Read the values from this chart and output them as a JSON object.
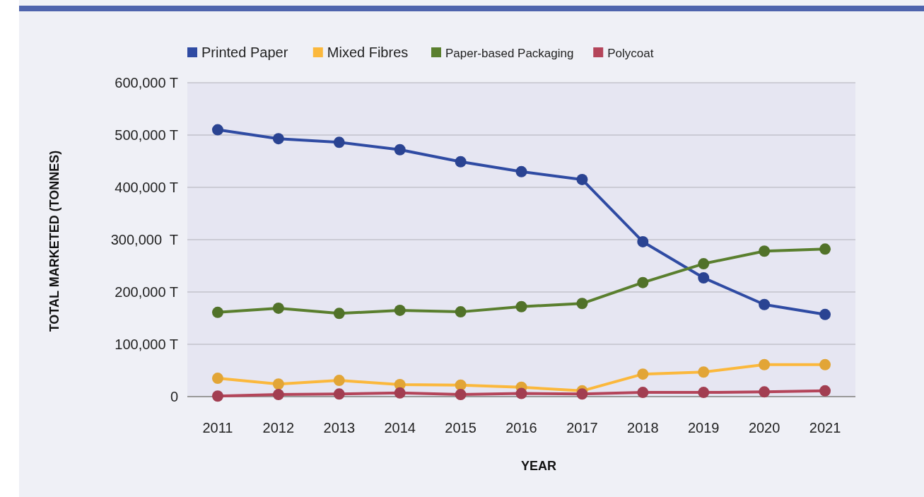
{
  "chart_data": {
    "type": "line",
    "xlabel": "YEAR",
    "ylabel": "TOTAL MARKETED (TONNES)",
    "categories": [
      "2011",
      "2012",
      "2013",
      "2014",
      "2015",
      "2016",
      "2017",
      "2018",
      "2019",
      "2020",
      "2021"
    ],
    "series": [
      {
        "name": "Printed Paper",
        "color": "#2f4ba3",
        "values": [
          510000,
          493000,
          486000,
          472000,
          449000,
          430000,
          415000,
          296000,
          227000,
          176000,
          157000
        ]
      },
      {
        "name": "Mixed Fibres",
        "color": "#fbb83c",
        "values": [
          35000,
          24000,
          31000,
          23000,
          22000,
          18000,
          11000,
          43000,
          47000,
          61000,
          61000
        ]
      },
      {
        "name": "Paper-based Packaging",
        "color": "#5a7f2e",
        "values": [
          161000,
          169000,
          159000,
          165000,
          162000,
          172000,
          178000,
          218000,
          254000,
          278000,
          282000
        ]
      },
      {
        "name": "Polycoat",
        "color": "#b4455a",
        "values": [
          1000,
          4000,
          5000,
          7000,
          4000,
          6000,
          5000,
          8000,
          8000,
          9000,
          11000
        ]
      }
    ],
    "ylim": [
      0,
      600000
    ],
    "yticks": [
      {
        "value": 0,
        "label": "0"
      },
      {
        "value": 100000,
        "label": "100,000 T"
      },
      {
        "value": 200000,
        "label": "200,000 T"
      },
      {
        "value": 300000,
        "label": "300,000  T"
      },
      {
        "value": 400000,
        "label": "400,000 T"
      },
      {
        "value": 500000,
        "label": "500,000 T"
      },
      {
        "value": 600000,
        "label": "600,000 T"
      }
    ],
    "grid": "y",
    "legend": "top",
    "marker": "circle"
  }
}
